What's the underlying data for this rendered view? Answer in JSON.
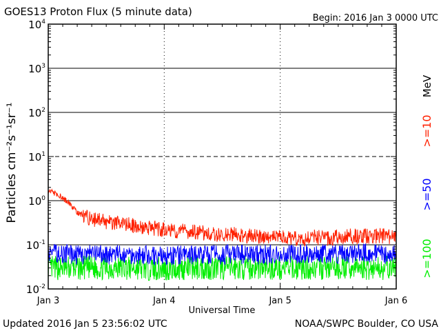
{
  "header": {
    "title": "GOES13 Proton Flux (5 minute data)",
    "begin": "Begin: 2016 Jan 3 0000 UTC"
  },
  "footer": {
    "updated": "Updated 2016 Jan  5 23:56:02 UTC",
    "source": "NOAA/SWPC Boulder, CO USA"
  },
  "colors": {
    "ge10": "#ff2000",
    "ge50": "#0000ff",
    "ge100": "#00ee00",
    "axis": "#000000"
  },
  "chart_data": {
    "type": "line",
    "title": "GOES13 Proton Flux (5 minute data)",
    "xlabel": "Universal Time",
    "ylabel": "Particles cm⁻²s⁻¹sr⁻¹",
    "yscale": "log",
    "ylim": [
      0.01,
      10000
    ],
    "xlim": [
      0,
      3
    ],
    "x_unit": "days since 2016 Jan 3 0000 UTC",
    "x_ticks": [
      {
        "value": 0,
        "label": "Jan 3"
      },
      {
        "value": 1,
        "label": "Jan 4"
      },
      {
        "value": 2,
        "label": "Jan 5"
      },
      {
        "value": 3,
        "label": "Jan 6"
      }
    ],
    "y_ticks": [
      {
        "value": 0.01,
        "base": "10",
        "exp": "-2"
      },
      {
        "value": 0.1,
        "base": "10",
        "exp": "-1"
      },
      {
        "value": 1,
        "base": "10",
        "exp": "0"
      },
      {
        "value": 10,
        "base": "10",
        "exp": "1"
      },
      {
        "value": 100,
        "base": "10",
        "exp": "2"
      },
      {
        "value": 1000,
        "base": "10",
        "exp": "3"
      },
      {
        "value": 10000,
        "base": "10",
        "exp": "4"
      }
    ],
    "thresholds": [
      {
        "value": 10,
        "style": "dashed"
      },
      {
        "value": 0.1,
        "style": "solid"
      }
    ],
    "legend": {
      "position": "right",
      "unit_label": "MeV",
      "entries": [
        {
          "label": ">=10",
          "color": "#ff2000"
        },
        {
          "label": ">=50",
          "color": "#0000ff"
        },
        {
          "label": ">=100",
          "color": "#00ee00"
        }
      ]
    },
    "series": [
      {
        "name": ">=10 MeV",
        "color": "#ff2000",
        "x": [
          0,
          0.05,
          0.1,
          0.15,
          0.2,
          0.25,
          0.3,
          0.4,
          0.5,
          0.6,
          0.7,
          0.8,
          0.9,
          1.0,
          1.1,
          1.2,
          1.3,
          1.4,
          1.5,
          1.6,
          1.7,
          1.8,
          1.9,
          2.0,
          2.1,
          2.2,
          2.3,
          2.4,
          2.5,
          2.6,
          2.7,
          2.8,
          2.9,
          3.0
        ],
        "values": [
          1.6,
          1.5,
          1.3,
          1.0,
          0.8,
          0.55,
          0.45,
          0.38,
          0.33,
          0.3,
          0.28,
          0.25,
          0.24,
          0.22,
          0.21,
          0.2,
          0.19,
          0.18,
          0.17,
          0.17,
          0.16,
          0.15,
          0.15,
          0.15,
          0.14,
          0.14,
          0.15,
          0.14,
          0.15,
          0.16,
          0.15,
          0.16,
          0.16,
          0.15
        ]
      },
      {
        "name": ">=50 MeV",
        "color": "#0000ff",
        "x": [
          0,
          0.25,
          0.5,
          0.75,
          1.0,
          1.25,
          1.5,
          1.75,
          2.0,
          2.25,
          2.5,
          2.75,
          3.0
        ],
        "values": [
          0.065,
          0.06,
          0.06,
          0.06,
          0.055,
          0.06,
          0.06,
          0.06,
          0.06,
          0.065,
          0.06,
          0.065,
          0.06
        ]
      },
      {
        "name": ">=100 MeV",
        "color": "#00ee00",
        "x": [
          0,
          0.25,
          0.5,
          0.75,
          1.0,
          1.25,
          1.5,
          1.75,
          2.0,
          2.25,
          2.5,
          2.75,
          3.0
        ],
        "values": [
          0.03,
          0.03,
          0.03,
          0.03,
          0.028,
          0.03,
          0.03,
          0.03,
          0.03,
          0.03,
          0.03,
          0.03,
          0.03
        ]
      }
    ]
  }
}
